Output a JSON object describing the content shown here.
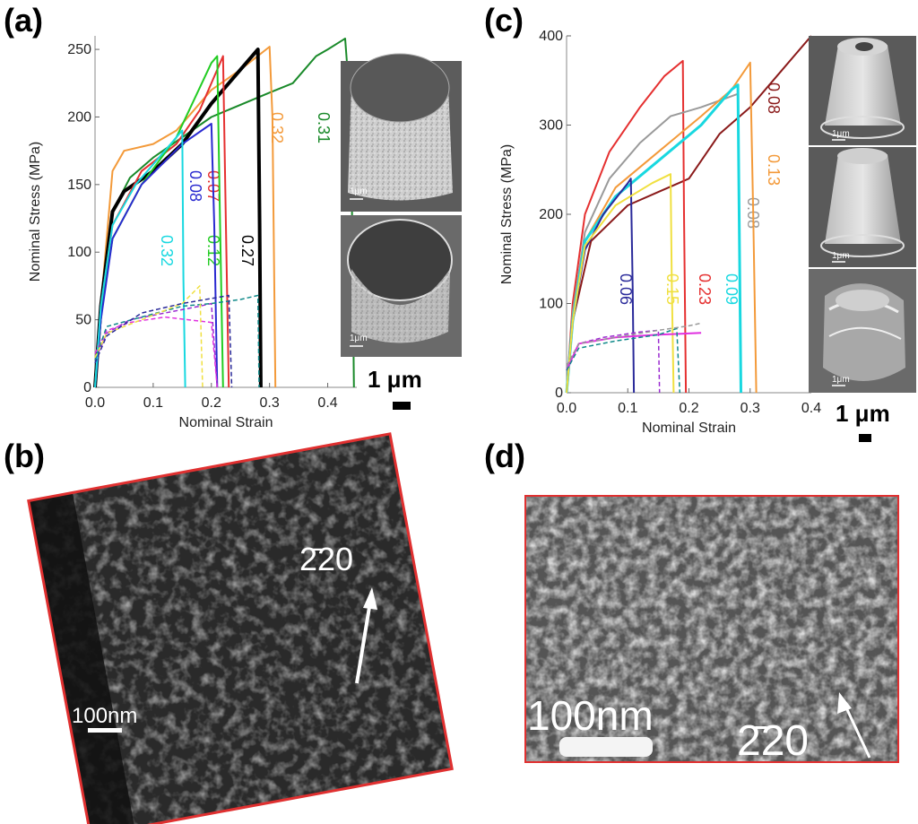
{
  "panels": {
    "a": {
      "label": "(a)"
    },
    "b": {
      "label": "(b)"
    },
    "c": {
      "label": "(c)"
    },
    "d": {
      "label": "(d)"
    }
  },
  "colors": {
    "black": "#000000",
    "green": "#1a8a2a",
    "orange": "#f39a3a",
    "red": "#e53030",
    "blue": "#2a2ad0",
    "lime": "#22cc22",
    "cyan": "#18d8e0",
    "gray": "#9a9a9a",
    "darkred": "#8a1a1a",
    "yellow": "#f0e040",
    "navy": "#2a2a9a",
    "purple": "#9a2ad0",
    "magenta": "#e030e0",
    "teal": "#108a8a",
    "panel_border": "#e03030"
  },
  "sem": {
    "a_top_scale": "1μm",
    "a_bottom_scale": "1μm",
    "c_scale_1": "1μm",
    "c_scale_2": "1μm",
    "c_scale_3": "1μm",
    "a_scalebar": "1 μm",
    "c_scalebar": "1 μm"
  },
  "tem": {
    "b": {
      "scale": "100nm",
      "direction": "2̄20"
    },
    "d": {
      "scale": "100nm",
      "direction": "2̄20"
    }
  },
  "chart_data": [
    {
      "type": "line",
      "panel": "a",
      "xlabel": "Nominal Strain",
      "ylabel": "Nominal Stress (MPa)",
      "xlim": [
        0,
        0.45
      ],
      "ylim": [
        0,
        260
      ],
      "xticks": [
        "0.0",
        "0.1",
        "0.2",
        "0.3",
        "0.4"
      ],
      "xtick_values": [
        0,
        0.1,
        0.2,
        0.3,
        0.4
      ],
      "yticks": [
        "0",
        "50",
        "100",
        "150",
        "200",
        "250"
      ],
      "ytick_values": [
        0,
        50,
        100,
        150,
        200,
        250
      ],
      "series": [
        {
          "color": "green",
          "label": "0.31",
          "width": 2,
          "points": [
            [
              0,
              0
            ],
            [
              0.01,
              50
            ],
            [
              0.03,
              130
            ],
            [
              0.06,
              155
            ],
            [
              0.1,
              170
            ],
            [
              0.2,
              200
            ],
            [
              0.3,
              218
            ],
            [
              0.34,
              225
            ],
            [
              0.36,
              235
            ],
            [
              0.38,
              245
            ],
            [
              0.4,
              250
            ],
            [
              0.43,
              258
            ],
            [
              0.44,
              200
            ],
            [
              0.445,
              0
            ]
          ]
        },
        {
          "color": "orange",
          "label": "0.32",
          "width": 2,
          "points": [
            [
              0,
              0
            ],
            [
              0.01,
              60
            ],
            [
              0.03,
              160
            ],
            [
              0.05,
              175
            ],
            [
              0.1,
              180
            ],
            [
              0.14,
              190
            ],
            [
              0.2,
              220
            ],
            [
              0.25,
              235
            ],
            [
              0.3,
              252
            ],
            [
              0.305,
              200
            ],
            [
              0.31,
              0
            ]
          ]
        },
        {
          "color": "black",
          "label": "0.27",
          "width": 4,
          "points": [
            [
              0,
              0
            ],
            [
              0.01,
              60
            ],
            [
              0.03,
              130
            ],
            [
              0.05,
              145
            ],
            [
              0.1,
              160
            ],
            [
              0.15,
              180
            ],
            [
              0.2,
              210
            ],
            [
              0.25,
              235
            ],
            [
              0.28,
              250
            ],
            [
              0.283,
              120
            ],
            [
              0.285,
              0
            ]
          ]
        },
        {
          "color": "red",
          "label": "0.07",
          "width": 2,
          "points": [
            [
              0,
              0
            ],
            [
              0.01,
              60
            ],
            [
              0.03,
              120
            ],
            [
              0.08,
              160
            ],
            [
              0.14,
              180
            ],
            [
              0.18,
              205
            ],
            [
              0.22,
              245
            ],
            [
              0.225,
              120
            ],
            [
              0.23,
              0
            ]
          ]
        },
        {
          "color": "lime",
          "label": "0.12",
          "width": 2,
          "points": [
            [
              0,
              0
            ],
            [
              0.01,
              55
            ],
            [
              0.03,
              110
            ],
            [
              0.08,
              150
            ],
            [
              0.14,
              185
            ],
            [
              0.2,
              240
            ],
            [
              0.21,
              245
            ],
            [
              0.215,
              120
            ],
            [
              0.22,
              0
            ]
          ]
        },
        {
          "color": "blue",
          "label": "0.08",
          "width": 2,
          "points": [
            [
              0,
              0
            ],
            [
              0.01,
              50
            ],
            [
              0.03,
              110
            ],
            [
              0.08,
              150
            ],
            [
              0.15,
              180
            ],
            [
              0.2,
              195
            ],
            [
              0.205,
              120
            ],
            [
              0.21,
              0
            ]
          ]
        },
        {
          "color": "cyan",
          "label": "0.32",
          "width": 2,
          "points": [
            [
              0,
              0
            ],
            [
              0.01,
              60
            ],
            [
              0.03,
              120
            ],
            [
              0.07,
              150
            ],
            [
              0.12,
              175
            ],
            [
              0.15,
              190
            ],
            [
              0.152,
              80
            ],
            [
              0.155,
              0
            ]
          ]
        },
        {
          "color": "purple",
          "label": "",
          "width": 1.5,
          "dash": true,
          "points": [
            [
              0,
              20
            ],
            [
              0.02,
              40
            ],
            [
              0.06,
              50
            ],
            [
              0.12,
              55
            ],
            [
              0.18,
              60
            ],
            [
              0.2,
              62
            ],
            [
              0.21,
              0
            ]
          ]
        },
        {
          "color": "magenta",
          "label": "",
          "width": 1.5,
          "dash": true,
          "points": [
            [
              0,
              25
            ],
            [
              0.02,
              42
            ],
            [
              0.06,
              48
            ],
            [
              0.12,
              52
            ],
            [
              0.16,
              50
            ],
            [
              0.2,
              48
            ],
            [
              0.21,
              0
            ]
          ]
        },
        {
          "color": "teal",
          "label": "",
          "width": 1.5,
          "dash": true,
          "points": [
            [
              0,
              20
            ],
            [
              0.02,
              45
            ],
            [
              0.08,
              52
            ],
            [
              0.15,
              60
            ],
            [
              0.2,
              62
            ],
            [
              0.25,
              65
            ],
            [
              0.28,
              68
            ],
            [
              0.282,
              0
            ]
          ]
        },
        {
          "color": "yellow",
          "label": "",
          "width": 1.5,
          "dash": true,
          "points": [
            [
              0,
              22
            ],
            [
              0.02,
              40
            ],
            [
              0.08,
              50
            ],
            [
              0.15,
              62
            ],
            [
              0.18,
              75
            ],
            [
              0.185,
              0
            ]
          ]
        },
        {
          "color": "navy",
          "label": "",
          "width": 1.5,
          "dash": true,
          "points": [
            [
              0,
              18
            ],
            [
              0.02,
              38
            ],
            [
              0.08,
              55
            ],
            [
              0.15,
              62
            ],
            [
              0.23,
              68
            ],
            [
              0.235,
              0
            ]
          ]
        }
      ],
      "label_rotation": "vertical"
    },
    {
      "type": "line",
      "panel": "c",
      "xlabel": "Nominal Strain",
      "ylabel": "Nominal Stress (MPa)",
      "xlim": [
        0,
        0.4
      ],
      "ylim": [
        0,
        400
      ],
      "xticks": [
        "0.0",
        "0.1",
        "0.2",
        "0.3",
        "0.4"
      ],
      "xtick_values": [
        0,
        0.1,
        0.2,
        0.3,
        0.4
      ],
      "yticks": [
        "0",
        "100",
        "200",
        "300",
        "400"
      ],
      "ytick_values": [
        0,
        100,
        200,
        300,
        400
      ],
      "series": [
        {
          "color": "darkred",
          "label": "0.08",
          "width": 2,
          "points": [
            [
              0,
              0
            ],
            [
              0.01,
              80
            ],
            [
              0.04,
              170
            ],
            [
              0.1,
              210
            ],
            [
              0.15,
              225
            ],
            [
              0.2,
              240
            ],
            [
              0.25,
              290
            ],
            [
              0.3,
              320
            ],
            [
              0.35,
              360
            ],
            [
              0.4,
              400
            ]
          ]
        },
        {
          "color": "red",
          "label": "0.23",
          "width": 2,
          "points": [
            [
              0,
              0
            ],
            [
              0.01,
              100
            ],
            [
              0.03,
              200
            ],
            [
              0.07,
              270
            ],
            [
              0.12,
              320
            ],
            [
              0.16,
              355
            ],
            [
              0.19,
              372
            ],
            [
              0.192,
              200
            ],
            [
              0.195,
              0
            ]
          ]
        },
        {
          "color": "gray",
          "label": "0.08",
          "width": 2,
          "points": [
            [
              0,
              0
            ],
            [
              0.01,
              90
            ],
            [
              0.03,
              180
            ],
            [
              0.07,
              240
            ],
            [
              0.12,
              280
            ],
            [
              0.17,
              310
            ],
            [
              0.22,
              320
            ],
            [
              0.26,
              330
            ],
            [
              0.28,
              335
            ],
            [
              0.285,
              0
            ]
          ]
        },
        {
          "color": "orange",
          "label": "0.13",
          "width": 2,
          "points": [
            [
              0,
              0
            ],
            [
              0.01,
              80
            ],
            [
              0.03,
              170
            ],
            [
              0.08,
              230
            ],
            [
              0.15,
              270
            ],
            [
              0.22,
              310
            ],
            [
              0.27,
              340
            ],
            [
              0.3,
              370
            ],
            [
              0.305,
              200
            ],
            [
              0.31,
              0
            ]
          ]
        },
        {
          "color": "cyan",
          "label": "0.09",
          "width": 3,
          "points": [
            [
              0,
              0
            ],
            [
              0.01,
              80
            ],
            [
              0.03,
              170
            ],
            [
              0.08,
              220
            ],
            [
              0.15,
              260
            ],
            [
              0.22,
              300
            ],
            [
              0.27,
              340
            ],
            [
              0.28,
              345
            ],
            [
              0.282,
              200
            ],
            [
              0.285,
              0
            ]
          ]
        },
        {
          "color": "navy",
          "label": "0.06",
          "width": 2,
          "points": [
            [
              0,
              0
            ],
            [
              0.01,
              80
            ],
            [
              0.03,
              160
            ],
            [
              0.06,
              200
            ],
            [
              0.1,
              235
            ],
            [
              0.105,
              240
            ],
            [
              0.108,
              120
            ],
            [
              0.11,
              0
            ]
          ]
        },
        {
          "color": "yellow",
          "label": "0.15",
          "width": 2,
          "points": [
            [
              0,
              0
            ],
            [
              0.01,
              80
            ],
            [
              0.03,
              165
            ],
            [
              0.08,
              210
            ],
            [
              0.14,
              235
            ],
            [
              0.17,
              245
            ],
            [
              0.172,
              120
            ],
            [
              0.175,
              0
            ]
          ]
        },
        {
          "color": "purple",
          "label": "",
          "width": 1.5,
          "dash": true,
          "points": [
            [
              0,
              30
            ],
            [
              0.02,
              55
            ],
            [
              0.06,
              62
            ],
            [
              0.12,
              68
            ],
            [
              0.15,
              70
            ],
            [
              0.152,
              0
            ]
          ]
        },
        {
          "color": "magenta",
          "label": "",
          "width": 2,
          "points": [
            [
              0,
              25
            ],
            [
              0.02,
              55
            ],
            [
              0.08,
              62
            ],
            [
              0.15,
              65
            ],
            [
              0.22,
              67
            ]
          ]
        },
        {
          "color": "teal",
          "label": "",
          "width": 1.5,
          "dash": true,
          "points": [
            [
              0,
              25
            ],
            [
              0.02,
              50
            ],
            [
              0.08,
              58
            ],
            [
              0.15,
              65
            ],
            [
              0.18,
              72
            ],
            [
              0.185,
              0
            ]
          ]
        },
        {
          "color": "gray",
          "label": "",
          "width": 1.5,
          "dash": true,
          "points": [
            [
              0,
              30
            ],
            [
              0.02,
              55
            ],
            [
              0.08,
              62
            ],
            [
              0.15,
              70
            ],
            [
              0.2,
              75
            ],
            [
              0.22,
              78
            ]
          ]
        }
      ],
      "label_rotation": "vertical"
    }
  ]
}
